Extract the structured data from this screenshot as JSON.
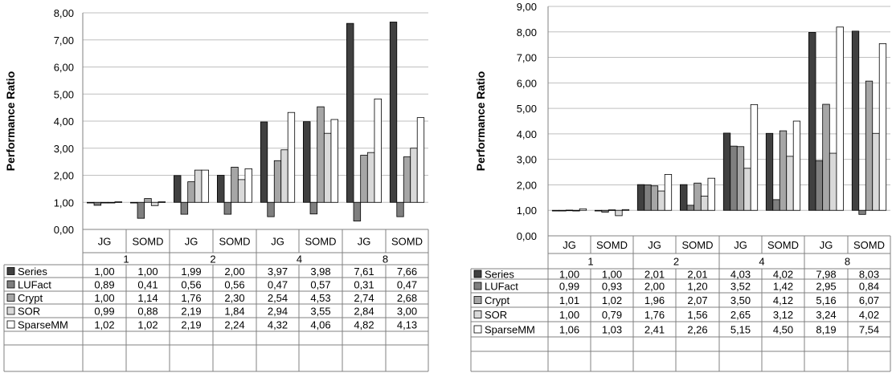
{
  "chart_data": [
    {
      "type": "bar",
      "ylabel": "Performance Ratio",
      "ylim": [
        0,
        8
      ],
      "yticks": [
        "0,00",
        "1,00",
        "2,00",
        "3,00",
        "4,00",
        "5,00",
        "6,00",
        "7,00",
        "8,00"
      ],
      "baseline": 1,
      "grid": true,
      "groups": [
        "1",
        "2",
        "4",
        "8"
      ],
      "categories": [
        "JG",
        "SOMD",
        "JG",
        "SOMD",
        "JG",
        "SOMD",
        "JG",
        "SOMD"
      ],
      "series": [
        {
          "name": "Series",
          "color": "#404040",
          "values": [
            1.0,
            1.0,
            1.99,
            2.0,
            3.97,
            3.98,
            7.61,
            7.66
          ],
          "labels": [
            "1,00",
            "1,00",
            "1,99",
            "2,00",
            "3,97",
            "3,98",
            "7,61",
            "7,66"
          ]
        },
        {
          "name": "LUFact",
          "color": "#7f7f7f",
          "values": [
            0.89,
            0.41,
            0.56,
            0.56,
            0.47,
            0.57,
            0.31,
            0.47
          ],
          "labels": [
            "0,89",
            "0,41",
            "0,56",
            "0,56",
            "0,47",
            "0,57",
            "0,31",
            "0,47"
          ]
        },
        {
          "name": "Crypt",
          "color": "#a6a6a6",
          "values": [
            1.0,
            1.14,
            1.76,
            2.3,
            2.54,
            4.53,
            2.74,
            2.68
          ],
          "labels": [
            "1,00",
            "1,14",
            "1,76",
            "2,30",
            "2,54",
            "4,53",
            "2,74",
            "2,68"
          ]
        },
        {
          "name": "SOR",
          "color": "#d9d9d9",
          "values": [
            0.99,
            0.88,
            2.19,
            1.84,
            2.94,
            3.55,
            2.84,
            3.0
          ],
          "labels": [
            "0,99",
            "0,88",
            "2,19",
            "1,84",
            "2,94",
            "3,55",
            "2,84",
            "3,00"
          ]
        },
        {
          "name": "SparseMM",
          "color": "#ffffff",
          "values": [
            1.02,
            1.02,
            2.19,
            2.24,
            4.32,
            4.06,
            4.82,
            4.13
          ],
          "labels": [
            "1,02",
            "1,02",
            "2,19",
            "2,24",
            "4,32",
            "4,06",
            "4,82",
            "4,13"
          ]
        }
      ]
    },
    {
      "type": "bar",
      "ylabel": "Performance Ratio",
      "ylim": [
        0,
        9
      ],
      "yticks": [
        "0,00",
        "1,00",
        "2,00",
        "3,00",
        "4,00",
        "5,00",
        "6,00",
        "7,00",
        "8,00",
        "9,00"
      ],
      "baseline": 1,
      "grid": true,
      "groups": [
        "1",
        "2",
        "4",
        "8"
      ],
      "categories": [
        "JG",
        "SOMD",
        "JG",
        "SOMD",
        "JG",
        "SOMD",
        "JG",
        "SOMD"
      ],
      "series": [
        {
          "name": "Series",
          "color": "#404040",
          "values": [
            1.0,
            1.0,
            2.01,
            2.01,
            4.03,
            4.02,
            7.98,
            8.03
          ],
          "labels": [
            "1,00",
            "1,00",
            "2,01",
            "2,01",
            "4,03",
            "4,02",
            "7,98",
            "8,03"
          ]
        },
        {
          "name": "LUFact",
          "color": "#7f7f7f",
          "values": [
            0.99,
            0.93,
            2.0,
            1.2,
            3.52,
            1.42,
            2.95,
            0.84
          ],
          "labels": [
            "0,99",
            "0,93",
            "2,00",
            "1,20",
            "3,52",
            "1,42",
            "2,95",
            "0,84"
          ]
        },
        {
          "name": "Crypt",
          "color": "#a6a6a6",
          "values": [
            1.01,
            1.02,
            1.96,
            2.07,
            3.5,
            4.12,
            5.16,
            6.07
          ],
          "labels": [
            "1,01",
            "1,02",
            "1,96",
            "2,07",
            "3,50",
            "4,12",
            "5,16",
            "6,07"
          ]
        },
        {
          "name": "SOR",
          "color": "#d9d9d9",
          "values": [
            1.0,
            0.79,
            1.76,
            1.56,
            2.65,
            3.12,
            3.24,
            4.02
          ],
          "labels": [
            "1,00",
            "0,79",
            "1,76",
            "1,56",
            "2,65",
            "3,12",
            "3,24",
            "4,02"
          ]
        },
        {
          "name": "SparseMM",
          "color": "#ffffff",
          "values": [
            1.06,
            1.03,
            2.41,
            2.26,
            5.15,
            4.5,
            8.19,
            7.54
          ],
          "labels": [
            "1,06",
            "1,03",
            "2,41",
            "2,26",
            "5,15",
            "4,50",
            "8,19",
            "7,54"
          ]
        }
      ]
    }
  ]
}
